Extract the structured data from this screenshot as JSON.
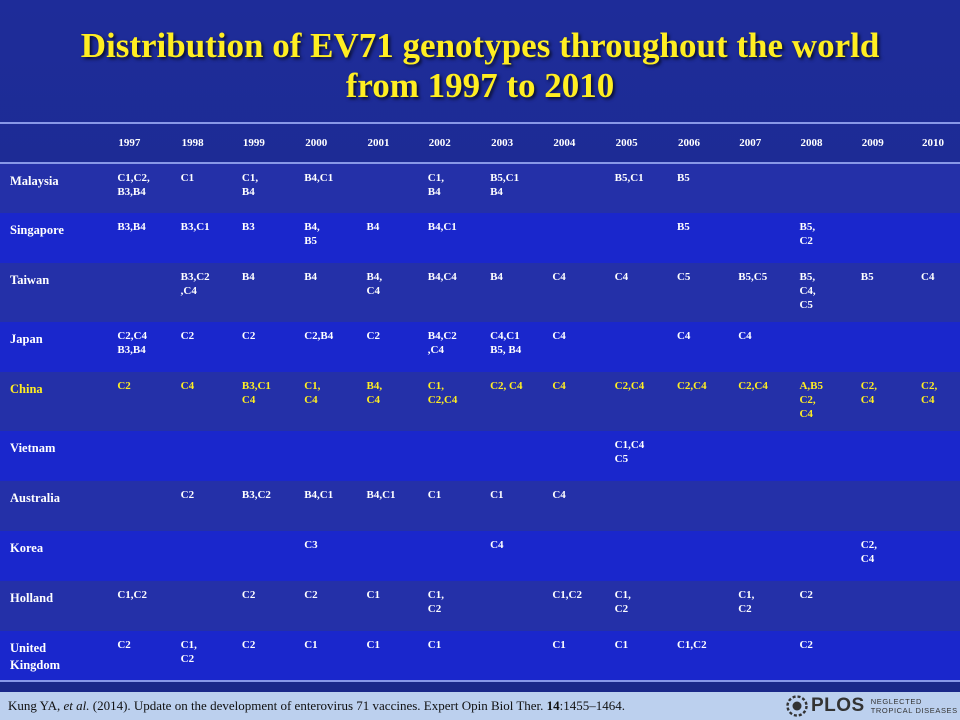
{
  "slide": {
    "title_line1": "Distribution of EV71 genotypes throughout the world",
    "title_line2": "from 1997 to 2010",
    "title_color": "#ffee22",
    "background_color": "#1e2c99",
    "highlight_color": "#ffee22"
  },
  "table": {
    "corner": "",
    "years": [
      "1997",
      "1998",
      "1999",
      "2000",
      "2001",
      "2002",
      "2003",
      "2004",
      "2005",
      "2006",
      "2007",
      "2008",
      "2009",
      "2010"
    ],
    "rows": [
      {
        "country": "Malaysia",
        "cells": [
          "C1,C2,\nB3,B4",
          "C1",
          "C1,\nB4",
          "B4,C1",
          "",
          "C1,\nB4",
          "B5,C1\nB4",
          "",
          "B5,C1",
          "B5",
          "",
          "",
          "",
          ""
        ]
      },
      {
        "country": "Singapore",
        "cells": [
          "B3,B4",
          "B3,C1",
          "B3",
          "B4,\nB5",
          "B4",
          "B4,C1",
          "",
          "",
          "",
          "B5",
          "",
          "B5,\nC2",
          "",
          ""
        ]
      },
      {
        "country": "Taiwan",
        "cells": [
          "",
          "B3,C2\n,C4",
          "B4",
          "B4",
          "B4,\nC4",
          "B4,C4",
          "B4",
          "C4",
          "C4",
          "C5",
          "B5,C5",
          "B5,\nC4,\nC5",
          "B5",
          "C4"
        ]
      },
      {
        "country": "Japan",
        "cells": [
          "C2,C4\nB3,B4",
          "C2",
          "C2",
          "C2,B4",
          "C2",
          "B4,C2\n,C4",
          "C4,C1\nB5, B4",
          "C4",
          "",
          "C4",
          "C4",
          "",
          "",
          ""
        ]
      },
      {
        "country": "China",
        "highlight": true,
        "cells": [
          "C2",
          "C4",
          "B3,C1\nC4",
          "C1,\nC4",
          "B4,\nC4",
          "C1,\nC2,C4",
          "C2, C4",
          "C4",
          "C2,C4",
          "C2,C4",
          "C2,C4",
          "A,B5\nC2,\nC4",
          "C2,\nC4",
          "C2,\nC4"
        ]
      },
      {
        "country": "Vietnam",
        "cells": [
          "",
          "",
          "",
          "",
          "",
          "",
          "",
          "",
          "C1,C4\nC5",
          "",
          "",
          "",
          "",
          ""
        ]
      },
      {
        "country": "Australia",
        "cells": [
          "",
          "C2",
          "B3,C2",
          "B4,C1",
          "B4,C1",
          "C1",
          "C1",
          "C4",
          "",
          "",
          "",
          "",
          "",
          ""
        ]
      },
      {
        "country": "Korea",
        "cells": [
          "",
          "",
          "",
          "C3",
          "",
          "",
          "C4",
          "",
          "",
          "",
          "",
          "",
          "C2,\nC4",
          ""
        ]
      },
      {
        "country": "Holland",
        "cells": [
          "C1,C2",
          "",
          "C2",
          "C2",
          "C1",
          "C1,\nC2",
          "",
          "C1,C2",
          "C1,\nC2",
          "",
          "C1,\nC2",
          "C2",
          "",
          ""
        ]
      },
      {
        "country": "United\nKingdom",
        "cells": [
          "C2",
          "C1,\nC2",
          "C2",
          "C1",
          "C1",
          "C1",
          "",
          "C1",
          "C1",
          "C1,C2",
          "",
          "C2",
          "",
          ""
        ]
      }
    ]
  },
  "footer": {
    "citation_author": "Kung YA, ",
    "citation_etal": "et al.",
    "citation_mid": " (2014). Update on the development of enterovirus 71 vaccines. Expert Opin Biol Ther. ",
    "citation_volume": "14",
    "citation_pages": ":1455–1464.",
    "logo_text": "PLOS",
    "logo_sub_line1": "NEGLECTED",
    "logo_sub_line2": "TROPICAL DISEASES",
    "background_color": "#bcd0ee"
  }
}
